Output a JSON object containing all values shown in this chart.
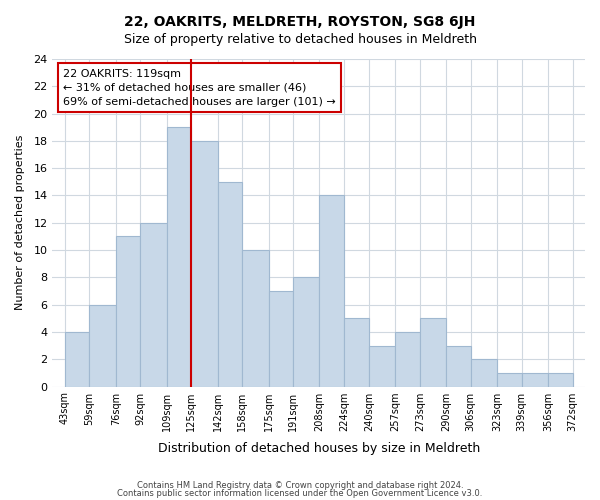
{
  "title": "22, OAKRITS, MELDRETH, ROYSTON, SG8 6JH",
  "subtitle": "Size of property relative to detached houses in Meldreth",
  "xlabel": "Distribution of detached houses by size in Meldreth",
  "ylabel": "Number of detached properties",
  "bar_color": "#c8d8e8",
  "bar_edge_color": "#a0b8d0",
  "bins": [
    43,
    59,
    76,
    92,
    109,
    125,
    142,
    158,
    175,
    191,
    208,
    224,
    240,
    257,
    273,
    290,
    306,
    323,
    339,
    356,
    372
  ],
  "counts": [
    4,
    6,
    11,
    12,
    19,
    18,
    15,
    10,
    7,
    8,
    14,
    5,
    3,
    4,
    5,
    3,
    2,
    1,
    1,
    1
  ],
  "tick_labels": [
    "43sqm",
    "59sqm",
    "76sqm",
    "92sqm",
    "109sqm",
    "125sqm",
    "142sqm",
    "158sqm",
    "175sqm",
    "191sqm",
    "208sqm",
    "224sqm",
    "240sqm",
    "257sqm",
    "273sqm",
    "290sqm",
    "306sqm",
    "323sqm",
    "339sqm",
    "356sqm",
    "372sqm"
  ],
  "vline_x": 119,
  "vline_color": "#cc0000",
  "annotation_title": "22 OAKRITS: 119sqm",
  "annotation_line1": "← 31% of detached houses are smaller (46)",
  "annotation_line2": "69% of semi-detached houses are larger (101) →",
  "annotation_box_color": "#ffffff",
  "annotation_box_edge": "#cc0000",
  "ylim": [
    0,
    24
  ],
  "yticks": [
    0,
    2,
    4,
    6,
    8,
    10,
    12,
    14,
    16,
    18,
    20,
    22,
    24
  ],
  "footer1": "Contains HM Land Registry data © Crown copyright and database right 2024.",
  "footer2": "Contains public sector information licensed under the Open Government Licence v3.0.",
  "bg_color": "#ffffff",
  "grid_color": "#d0d8e0"
}
